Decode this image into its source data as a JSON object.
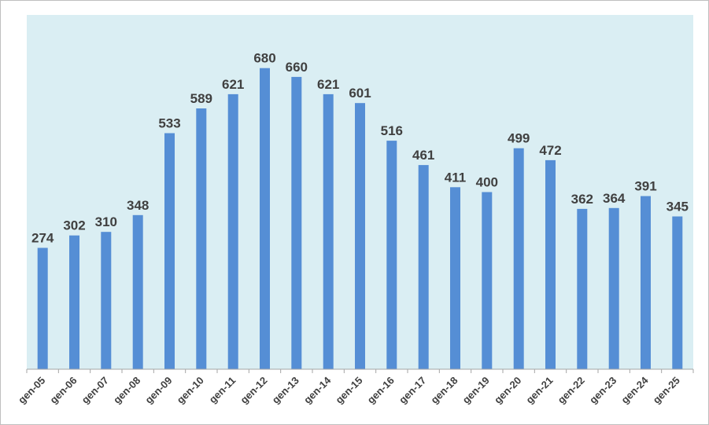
{
  "chart_data": {
    "type": "bar",
    "categories": [
      "gen-05",
      "gen-06",
      "gen-07",
      "gen-08",
      "gen-09",
      "gen-10",
      "gen-11",
      "gen-12",
      "gen-13",
      "gen-14",
      "gen-15",
      "gen-16",
      "gen-17",
      "gen-18",
      "gen-19",
      "gen-20",
      "gen-21",
      "gen-22",
      "gen-23",
      "gen-24",
      "gen-25"
    ],
    "values": [
      274,
      302,
      310,
      348,
      533,
      589,
      621,
      680,
      660,
      621,
      601,
      516,
      461,
      411,
      400,
      499,
      472,
      362,
      364,
      391,
      345
    ],
    "title": "",
    "xlabel": "",
    "ylabel": "",
    "ylim": [
      0,
      800
    ],
    "grid": false,
    "legend": "none",
    "data_labels": true,
    "colors": {
      "bar": "#558ED5",
      "plot_background": "#DAEEF3",
      "label_text": "#404040",
      "axis": "#A6A6A6"
    }
  }
}
